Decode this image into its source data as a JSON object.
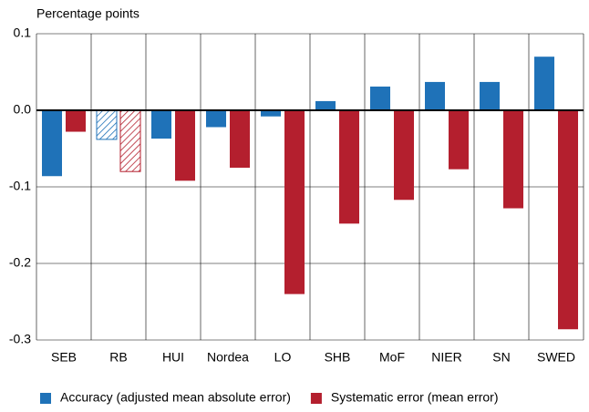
{
  "chart_data": {
    "type": "bar",
    "y_label": "Percentage points",
    "categories": [
      "SEB",
      "RB",
      "HUI",
      "Nordea",
      "LO",
      "SHB",
      "MoF",
      "NIER",
      "SN",
      "SWED"
    ],
    "series": [
      {
        "name": "Accuracy (adjusted mean absolute error)",
        "color": "#1f72b8",
        "values": [
          -0.086,
          -0.038,
          -0.037,
          -0.022,
          -0.008,
          0.012,
          0.031,
          0.037,
          0.037,
          0.07
        ]
      },
      {
        "name": "Systematic error (mean error)",
        "color": "#b41f2e",
        "values": [
          -0.028,
          -0.08,
          -0.092,
          -0.075,
          -0.24,
          -0.148,
          -0.117,
          -0.077,
          -0.128,
          -0.286
        ]
      }
    ],
    "hatched_categories": [
      "RB"
    ],
    "ylim": [
      -0.3,
      0.1
    ],
    "yticks": [
      0.1,
      {
        "value": 0,
        "label": "0.0"
      },
      -0.1,
      -0.2,
      -0.3
    ],
    "grid": true
  }
}
